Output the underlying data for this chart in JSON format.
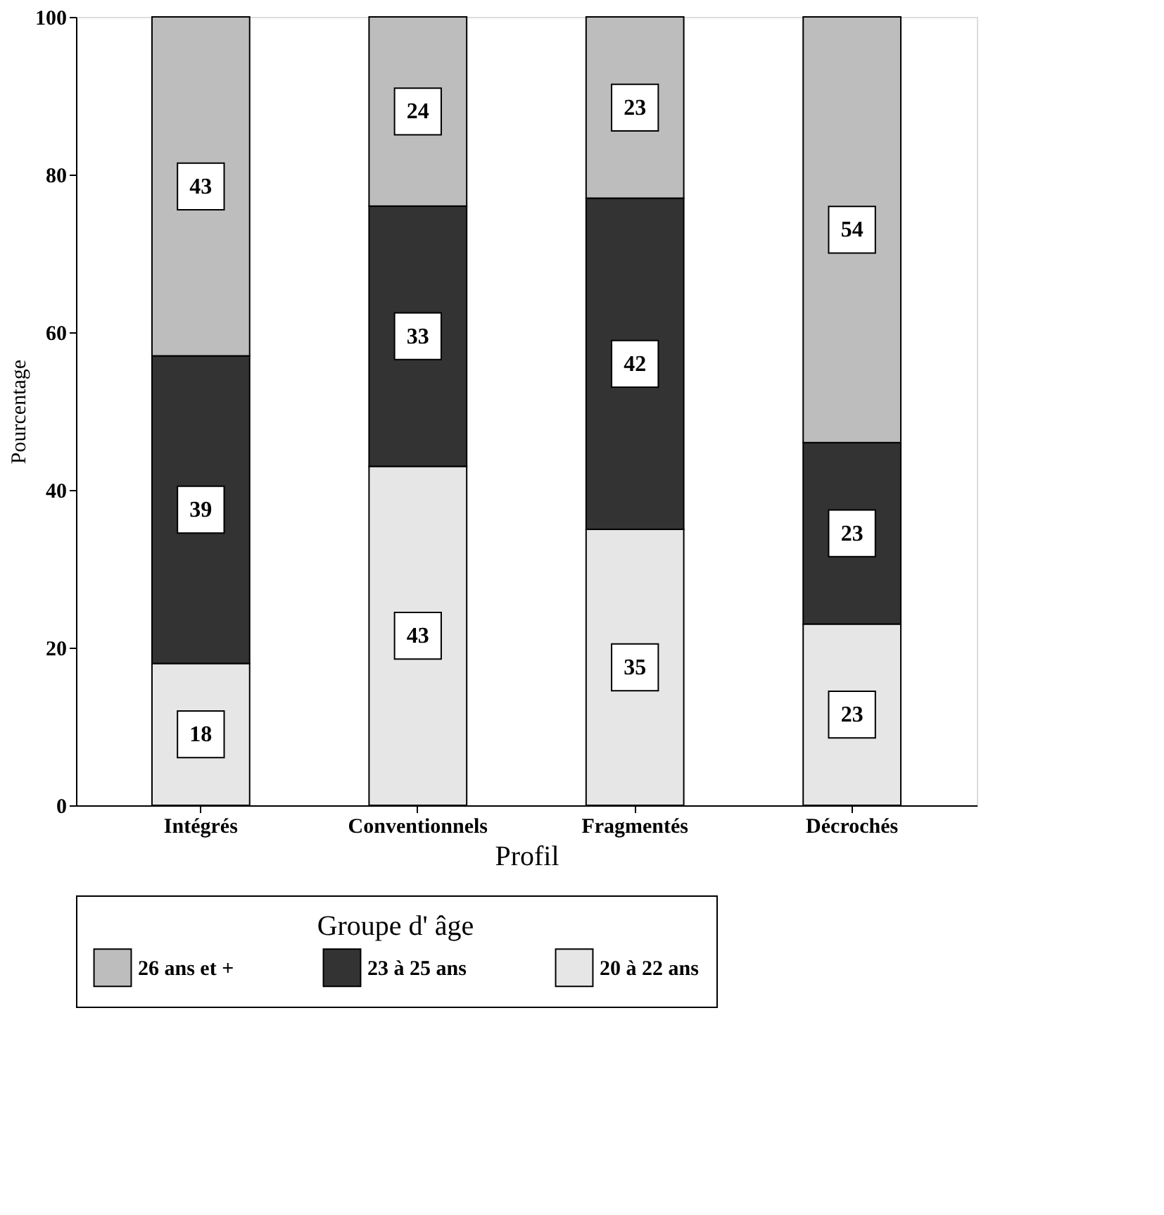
{
  "chart_data": {
    "type": "bar",
    "stacked": true,
    "xlabel": "Profil",
    "ylabel": "Pourcentage",
    "legend_title": "Groupe d' âge",
    "legend": "bottom",
    "grid": false,
    "data_labels": true,
    "categories": [
      "Intégrés",
      "Conventionnels",
      "Fragmentés",
      "Décrochés"
    ],
    "ylim": [
      0,
      100
    ],
    "yticks": [
      0,
      20,
      40,
      60,
      80,
      100
    ],
    "series": [
      {
        "name": "20 à 22 ans",
        "color": "#e6e6e6",
        "values": [
          18,
          43,
          35,
          23
        ]
      },
      {
        "name": "23 à 25 ans",
        "color": "#333333",
        "values": [
          39,
          33,
          42,
          23
        ]
      },
      {
        "name": "26 ans et +",
        "color": "#bdbdbd",
        "values": [
          43,
          24,
          23,
          54
        ]
      }
    ]
  }
}
